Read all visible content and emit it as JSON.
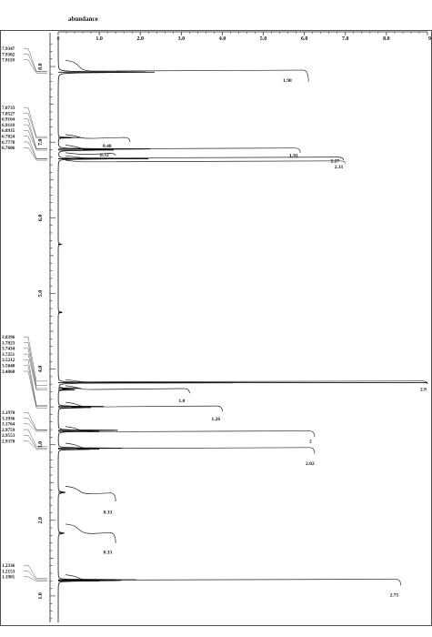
{
  "chart_data": {
    "type": "line",
    "title": "",
    "abundance_label": "abundance",
    "abundance_ticks": [
      "0",
      "1.0",
      "2.0",
      "3.0",
      "4.0",
      "5.0",
      "6.0",
      "7.0",
      "8.0",
      "9"
    ],
    "abundance_range": [
      0,
      9
    ],
    "ppm_ticks": [
      "8.0",
      "7.0",
      "6.0",
      "5.0",
      "4.0",
      "3.0",
      "2.0",
      "1.0"
    ],
    "ppm_range": [
      8.35,
      0.65
    ],
    "peak_label_groups": [
      [
        "7.9347",
        "7.9302",
        "7.9118"
      ],
      [
        "7.0733",
        "7.0527",
        "6.9164",
        "6.9118",
        "6.8935",
        "6.7824",
        "6.7778",
        "6.7606"
      ],
      [
        "3.8396",
        "3.7823",
        "3.7434",
        "3.7251",
        "3.5212",
        "3.5040",
        "3.4868"
      ],
      [
        "3.1970",
        "3.1936",
        "3.1764",
        "2.9759",
        "2.9553",
        "2.9370"
      ],
      [
        "1.2336",
        "1.2153",
        "1.1981"
      ]
    ],
    "peaks": [
      {
        "ppm": 7.925,
        "height": 2.35,
        "width": 0.03
      },
      {
        "ppm": 7.06,
        "height": 0.55,
        "width": 0.02
      },
      {
        "ppm": 6.91,
        "height": 2.25,
        "width": 0.02
      },
      {
        "ppm": 6.895,
        "height": 1.35,
        "width": 0.02
      },
      {
        "ppm": 6.78,
        "height": 2.2,
        "width": 0.02
      },
      {
        "ppm": 5.65,
        "height": 0.08,
        "width": 0.04
      },
      {
        "ppm": 4.75,
        "height": 0.1,
        "width": 0.04
      },
      {
        "ppm": 3.82,
        "height": 9.0,
        "width": 0.012
      },
      {
        "ppm": 3.745,
        "height": 0.55,
        "width": 0.02
      },
      {
        "ppm": 3.725,
        "height": 0.4,
        "width": 0.02
      },
      {
        "ppm": 3.505,
        "height": 1.1,
        "width": 0.02
      },
      {
        "ppm": 3.49,
        "height": 0.8,
        "width": 0.02
      },
      {
        "ppm": 3.19,
        "height": 1.45,
        "width": 0.02
      },
      {
        "ppm": 3.176,
        "height": 1.0,
        "width": 0.02
      },
      {
        "ppm": 2.955,
        "height": 1.55,
        "width": 0.02
      },
      {
        "ppm": 2.94,
        "height": 1.0,
        "width": 0.02
      },
      {
        "ppm": 2.37,
        "height": 0.18,
        "width": 0.05
      },
      {
        "ppm": 1.83,
        "height": 0.15,
        "width": 0.05
      },
      {
        "ppm": 1.215,
        "height": 1.9,
        "width": 0.015
      },
      {
        "ppm": 1.205,
        "height": 1.4,
        "width": 0.015
      },
      {
        "ppm": 1.198,
        "height": 1.0,
        "width": 0.015
      }
    ],
    "integrals": [
      {
        "label": "1.98",
        "from_ppm": 8.08,
        "to_ppm": 7.8,
        "value": 6.1
      },
      {
        "label": "0.48",
        "from_ppm": 7.1,
        "to_ppm": 7.0,
        "value": 1.75
      },
      {
        "label": "1.91",
        "from_ppm": 6.96,
        "to_ppm": 6.86,
        "value": 5.9
      },
      {
        "label": "0.33",
        "from_ppm": 6.86,
        "to_ppm": 6.82,
        "value": 1.4
      },
      {
        "label": "2.27",
        "from_ppm": 6.82,
        "to_ppm": 6.76,
        "value": 6.95
      },
      {
        "label": "2.31",
        "from_ppm": 6.76,
        "to_ppm": 6.72,
        "value": 7.0
      },
      {
        "label": "2.9",
        "from_ppm": 3.86,
        "to_ppm": 3.8,
        "value": 9.0
      },
      {
        "label": "1.0",
        "from_ppm": 3.78,
        "to_ppm": 3.68,
        "value": 3.2
      },
      {
        "label": "1.26",
        "from_ppm": 3.56,
        "to_ppm": 3.44,
        "value": 4.0
      },
      {
        "label": "2",
        "from_ppm": 3.24,
        "to_ppm": 3.1,
        "value": 6.25
      },
      {
        "label": "2.02",
        "from_ppm": 3.02,
        "to_ppm": 2.88,
        "value": 6.25
      },
      {
        "label": "0.33",
        "from_ppm": 2.45,
        "to_ppm": 2.25,
        "value": 1.4
      },
      {
        "label": "0.33",
        "from_ppm": 1.95,
        "to_ppm": 1.7,
        "value": 1.4
      },
      {
        "label": "2.75",
        "from_ppm": 1.28,
        "to_ppm": 1.14,
        "value": 8.35
      }
    ]
  }
}
